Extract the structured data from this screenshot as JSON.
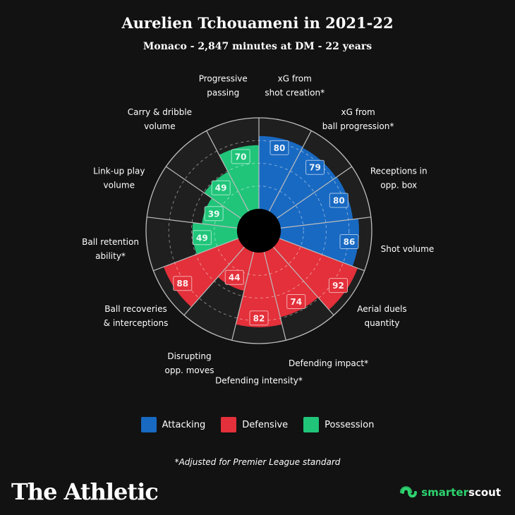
{
  "header": {
    "title": "Aurelien Tchouameni in 2021-22",
    "subtitle": "Monaco - 2,847 minutes at DM - 22 years"
  },
  "colors": {
    "attacking": "#1869c2",
    "defensive": "#e3303a",
    "possession": "#20c57a",
    "background": "#121212",
    "grid": "#bdbdbd"
  },
  "chart_data": {
    "type": "pie",
    "subtype": "polar-area",
    "max": 100,
    "ring_values": [
      25,
      50,
      75,
      100
    ],
    "categories": [
      {
        "label": "xG from\nshot creation*",
        "value": 80,
        "group": "Attacking"
      },
      {
        "label": "xG from\nball progression*",
        "value": 79,
        "group": "Attacking"
      },
      {
        "label": "Receptions in\nopp. box",
        "value": 80,
        "group": "Attacking"
      },
      {
        "label": "Shot volume",
        "value": 86,
        "group": "Attacking"
      },
      {
        "label": "Aerial duels\nquantity",
        "value": 92,
        "group": "Defensive"
      },
      {
        "label": "Defending impact*",
        "value": 74,
        "group": "Defensive"
      },
      {
        "label": "Defending intensity*",
        "value": 82,
        "group": "Defensive"
      },
      {
        "label": "Disrupting\nopp. moves",
        "value": 44,
        "group": "Defensive"
      },
      {
        "label": "Ball recoveries\n& interceptions",
        "value": 88,
        "group": "Defensive"
      },
      {
        "label": "Ball retention\nability*",
        "value": 49,
        "group": "Possession"
      },
      {
        "label": "Link-up play\nvolume",
        "value": 39,
        "group": "Possession"
      },
      {
        "label": "Carry & dribble\nvolume",
        "value": 49,
        "group": "Possession"
      },
      {
        "label": "Progressive\npassing",
        "value": 70,
        "group": "Possession"
      }
    ],
    "legend": {
      "placement": "bottom",
      "entries": [
        "Attacking",
        "Defensive",
        "Possession"
      ]
    }
  },
  "footnote": "*Adjusted for Premier League standard",
  "branding": {
    "publisher": "The Athletic",
    "partner_a": "smarter",
    "partner_b": "scout",
    "partner_icon": "smarterscout-logo-icon"
  }
}
